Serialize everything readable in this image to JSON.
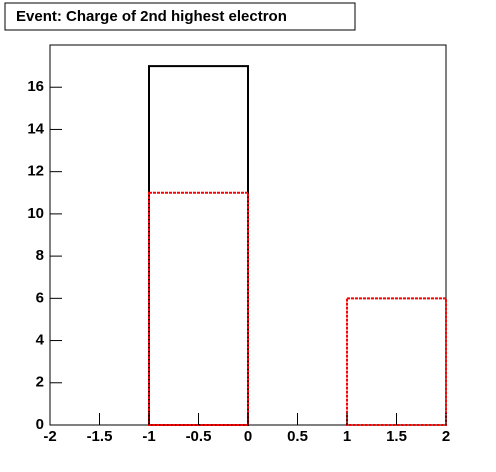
{
  "chart_data": {
    "type": "histogram",
    "title": "Event: Charge of 2nd highest electron",
    "bins": [
      -2,
      -1,
      0,
      1,
      2
    ],
    "series": [
      {
        "color": "#000000",
        "linestyle": "solid",
        "values": [
          0,
          17,
          0,
          0
        ]
      },
      {
        "color": "#ff0000",
        "linestyle": "dashed",
        "values": [
          0,
          11,
          0,
          6
        ]
      }
    ],
    "xlim": [
      -2,
      2
    ],
    "ylim": [
      0,
      18
    ],
    "xticks": [
      -2,
      -1.5,
      -1,
      -0.5,
      0,
      0.5,
      1,
      1.5,
      2
    ],
    "yticks": [
      0,
      2,
      4,
      6,
      8,
      10,
      12,
      14,
      16
    ]
  }
}
